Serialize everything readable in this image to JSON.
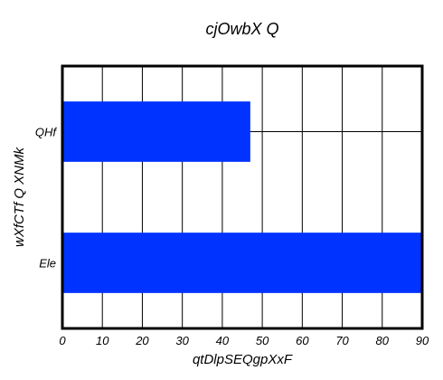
{
  "chart_data": {
    "type": "bar",
    "orientation": "horizontal",
    "title": "cjOwbX Q",
    "xlabel": "qtDlpSEQgpXxF",
    "ylabel": "wXfCTf  Q XNMk",
    "categories": [
      "QHf",
      "Ele"
    ],
    "values": [
      47,
      90
    ],
    "xlim": [
      0,
      90
    ],
    "xticks": [
      0,
      10,
      20,
      30,
      40,
      50,
      60,
      70,
      80,
      90
    ],
    "grid": true,
    "bar_color": "#0033ff"
  }
}
